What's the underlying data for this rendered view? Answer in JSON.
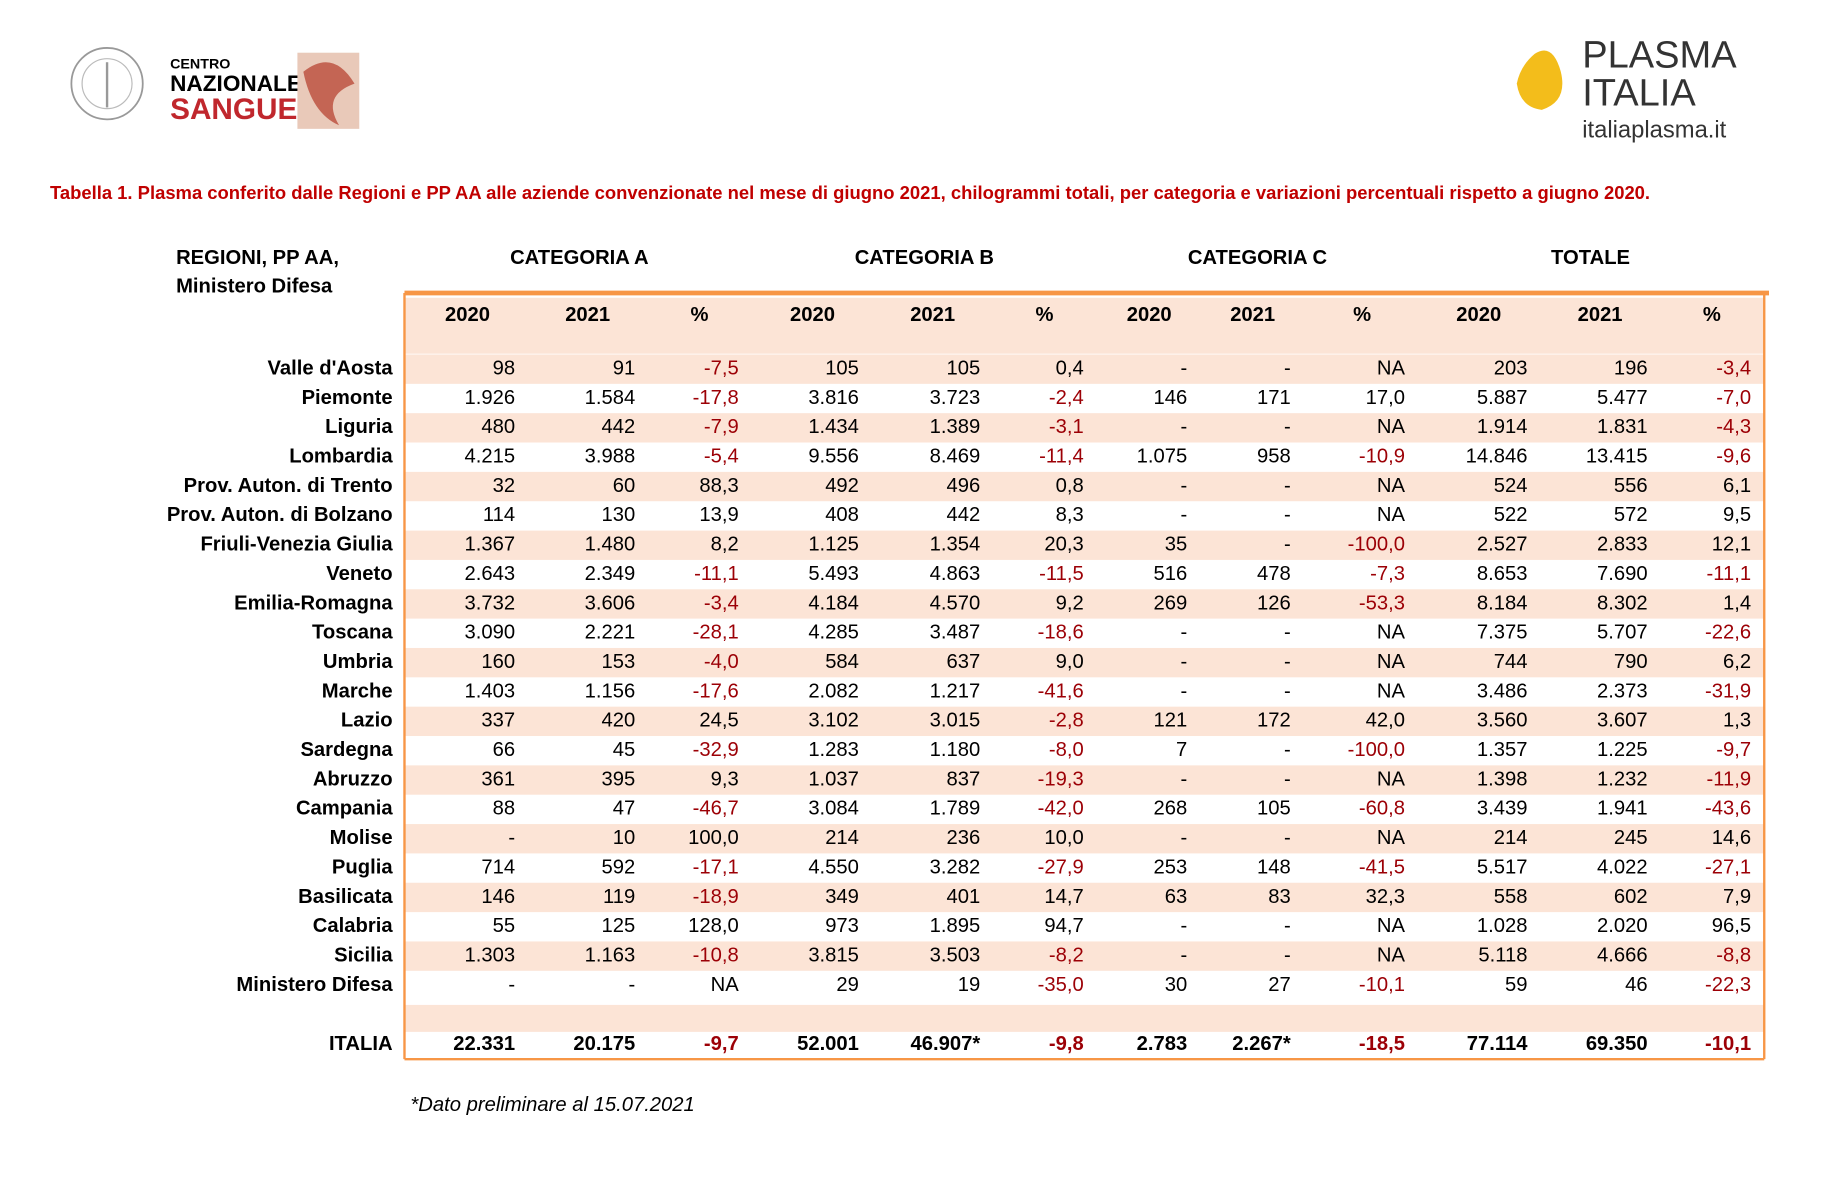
{
  "header": {
    "logo_left": [
      "CENTRO",
      "NAZIONALE",
      "SANGUE"
    ],
    "logo_right": [
      "PLASMA",
      "ITALIA",
      "italiaplasma.it"
    ]
  },
  "title": "Tabella 1. Plasma conferito dalle Regioni e PP AA alle aziende convenzionate nel mese di giugno 2021, chilogrammi totali, per categoria e variazioni percentuali rispetto a giugno 2020.",
  "table": {
    "region_header": [
      "REGIONI, PP AA,",
      "Ministero Difesa"
    ],
    "groups": [
      "CATEGORIA A",
      "CATEGORIA B",
      "CATEGORIA C",
      "TOTALE"
    ],
    "columns": [
      "2020",
      "2021",
      "%",
      "2020",
      "2021",
      "%",
      "2020",
      "2021",
      "%",
      "2020",
      "2021",
      "%"
    ],
    "rows": [
      {
        "label": "Valle d'Aosta",
        "values": [
          "98",
          "91",
          "-7,5",
          "105",
          "105",
          "0,4",
          "-",
          "-",
          "NA",
          "203",
          "196",
          "-3,4"
        ]
      },
      {
        "label": "Piemonte",
        "values": [
          "1.926",
          "1.584",
          "-17,8",
          "3.816",
          "3.723",
          "-2,4",
          "146",
          "171",
          "17,0",
          "5.887",
          "5.477",
          "-7,0"
        ]
      },
      {
        "label": "Liguria",
        "values": [
          "480",
          "442",
          "-7,9",
          "1.434",
          "1.389",
          "-3,1",
          "-",
          "-",
          "NA",
          "1.914",
          "1.831",
          "-4,3"
        ]
      },
      {
        "label": "Lombardia",
        "values": [
          "4.215",
          "3.988",
          "-5,4",
          "9.556",
          "8.469",
          "-11,4",
          "1.075",
          "958",
          "-10,9",
          "14.846",
          "13.415",
          "-9,6"
        ]
      },
      {
        "label": "Prov. Auton. di Trento",
        "values": [
          "32",
          "60",
          "88,3",
          "492",
          "496",
          "0,8",
          "-",
          "-",
          "NA",
          "524",
          "556",
          "6,1"
        ]
      },
      {
        "label": "Prov. Auton. di Bolzano",
        "values": [
          "114",
          "130",
          "13,9",
          "408",
          "442",
          "8,3",
          "-",
          "-",
          "NA",
          "522",
          "572",
          "9,5"
        ]
      },
      {
        "label": "Friuli-Venezia Giulia",
        "values": [
          "1.367",
          "1.480",
          "8,2",
          "1.125",
          "1.354",
          "20,3",
          "35",
          "-",
          "-100,0",
          "2.527",
          "2.833",
          "12,1"
        ]
      },
      {
        "label": "Veneto",
        "values": [
          "2.643",
          "2.349",
          "-11,1",
          "5.493",
          "4.863",
          "-11,5",
          "516",
          "478",
          "-7,3",
          "8.653",
          "7.690",
          "-11,1"
        ]
      },
      {
        "label": "Emilia-Romagna",
        "values": [
          "3.732",
          "3.606",
          "-3,4",
          "4.184",
          "4.570",
          "9,2",
          "269",
          "126",
          "-53,3",
          "8.184",
          "8.302",
          "1,4"
        ]
      },
      {
        "label": "Toscana",
        "values": [
          "3.090",
          "2.221",
          "-28,1",
          "4.285",
          "3.487",
          "-18,6",
          "-",
          "-",
          "NA",
          "7.375",
          "5.707",
          "-22,6"
        ]
      },
      {
        "label": "Umbria",
        "values": [
          "160",
          "153",
          "-4,0",
          "584",
          "637",
          "9,0",
          "-",
          "-",
          "NA",
          "744",
          "790",
          "6,2"
        ]
      },
      {
        "label": "Marche",
        "values": [
          "1.403",
          "1.156",
          "-17,6",
          "2.082",
          "1.217",
          "-41,6",
          "-",
          "-",
          "NA",
          "3.486",
          "2.373",
          "-31,9"
        ]
      },
      {
        "label": "Lazio",
        "values": [
          "337",
          "420",
          "24,5",
          "3.102",
          "3.015",
          "-2,8",
          "121",
          "172",
          "42,0",
          "3.560",
          "3.607",
          "1,3"
        ]
      },
      {
        "label": "Sardegna",
        "values": [
          "66",
          "45",
          "-32,9",
          "1.283",
          "1.180",
          "-8,0",
          "7",
          "-",
          "-100,0",
          "1.357",
          "1.225",
          "-9,7"
        ]
      },
      {
        "label": "Abruzzo",
        "values": [
          "361",
          "395",
          "9,3",
          "1.037",
          "837",
          "-19,3",
          "-",
          "-",
          "NA",
          "1.398",
          "1.232",
          "-11,9"
        ]
      },
      {
        "label": "Campania",
        "values": [
          "88",
          "47",
          "-46,7",
          "3.084",
          "1.789",
          "-42,0",
          "268",
          "105",
          "-60,8",
          "3.439",
          "1.941",
          "-43,6"
        ]
      },
      {
        "label": "Molise",
        "values": [
          "-",
          "10",
          "100,0",
          "214",
          "236",
          "10,0",
          "-",
          "-",
          "NA",
          "214",
          "245",
          "14,6"
        ]
      },
      {
        "label": "Puglia",
        "values": [
          "714",
          "592",
          "-17,1",
          "4.550",
          "3.282",
          "-27,9",
          "253",
          "148",
          "-41,5",
          "5.517",
          "4.022",
          "-27,1"
        ]
      },
      {
        "label": "Basilicata",
        "values": [
          "146",
          "119",
          "-18,9",
          "349",
          "401",
          "14,7",
          "63",
          "83",
          "32,3",
          "558",
          "602",
          "7,9"
        ]
      },
      {
        "label": "Calabria",
        "values": [
          "55",
          "125",
          "128,0",
          "973",
          "1.895",
          "94,7",
          "-",
          "-",
          "NA",
          "1.028",
          "2.020",
          "96,5"
        ]
      },
      {
        "label": "Sicilia",
        "values": [
          "1.303",
          "1.163",
          "-10,8",
          "3.815",
          "3.503",
          "-8,2",
          "-",
          "-",
          "NA",
          "5.118",
          "4.666",
          "-8,8"
        ]
      },
      {
        "label": "Ministero Difesa",
        "values": [
          "-",
          "-",
          "NA",
          "29",
          "19",
          "-35,0",
          "30",
          "27",
          "-10,1",
          "59",
          "46",
          "-22,3"
        ]
      }
    ],
    "total": {
      "label": "ITALIA",
      "values": [
        "22.331",
        "20.175",
        "-9,7",
        "52.001",
        "46.907*",
        "-9,8",
        "2.783",
        "2.267*",
        "-18,5",
        "77.114",
        "69.350",
        "-10,1"
      ]
    }
  },
  "footnote": "*Dato preliminare al 15.07.2021"
}
